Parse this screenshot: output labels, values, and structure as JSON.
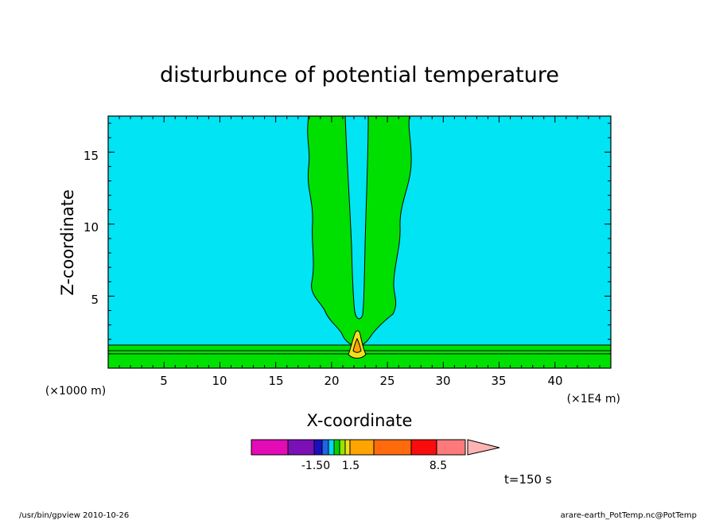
{
  "chart_data": {
    "type": "contour",
    "title": "disturbunce of potential temperature",
    "xlabel": "X-coordinate",
    "ylabel": "Z-coordinate",
    "x_unit_note": "(×1E4 m)",
    "y_unit_note": "(×1000 m)",
    "xlim": [
      0,
      45
    ],
    "ylim": [
      0,
      17.5
    ],
    "x_ticks": [
      5,
      10,
      15,
      20,
      25,
      30,
      35,
      40
    ],
    "y_ticks": [
      5,
      10,
      15
    ],
    "x_tick_labels": [
      "5",
      "10",
      "15",
      "20",
      "25",
      "30",
      "35",
      "40"
    ],
    "y_tick_labels": [
      "5",
      "10",
      "15"
    ],
    "time_label": "t=150 s",
    "footer_left": "/usr/bin/gpview   2010-10-26",
    "footer_right": "arare-earth_PotTemp.nc@PotTemp",
    "colorbar": {
      "colors": [
        "#e20bb5",
        "#7a10b5",
        "#1a0fbf",
        "#1f63e6",
        "#00d8f3",
        "#00d200",
        "#91e600",
        "#f2df1a",
        "#ffa400",
        "#ff6a0c",
        "#f80c0c",
        "#fd7a7a",
        "#ffb3b3"
      ],
      "labels": [
        "-1.50",
        "1.5",
        "8.5"
      ]
    },
    "regions": [
      {
        "name": "background",
        "color": "#00e4f3"
      },
      {
        "name": "plume",
        "color": "#00e000"
      },
      {
        "name": "hot-core",
        "color": "#f2df1a"
      },
      {
        "name": "hot-core-inner",
        "color": "#ffa400"
      }
    ]
  }
}
